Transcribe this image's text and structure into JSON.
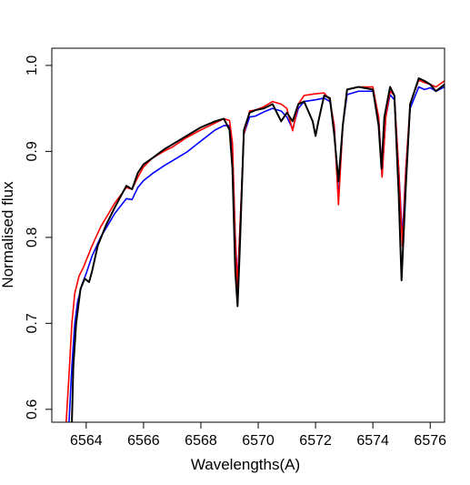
{
  "chart_data": {
    "type": "line",
    "title": "",
    "xlabel": "Wavelengths(A)",
    "ylabel": "Normalised flux",
    "xlim": [
      6562.8,
      6576.5
    ],
    "ylim": [
      0.585,
      1.02
    ],
    "xticks": [
      6564,
      6566,
      6568,
      6570,
      6572,
      6574,
      6576
    ],
    "yticks": [
      0.6,
      0.7,
      0.8,
      0.9,
      1.0
    ],
    "xtick_labels": [
      "6564",
      "6566",
      "6568",
      "6570",
      "6572",
      "6574",
      "6576"
    ],
    "ytick_labels": [
      "0.6",
      "0.7",
      "0.8",
      "0.9",
      "1.0"
    ],
    "grid": false,
    "legend": "none",
    "series": [
      {
        "color": "#0000ff",
        "points": [
          [
            6563.4,
            0.585
          ],
          [
            6563.5,
            0.65
          ],
          [
            6563.6,
            0.7
          ],
          [
            6563.7,
            0.725
          ],
          [
            6563.85,
            0.745
          ],
          [
            6564.0,
            0.758
          ],
          [
            6564.2,
            0.778
          ],
          [
            6564.5,
            0.8
          ],
          [
            6565.0,
            0.828
          ],
          [
            6565.4,
            0.845
          ],
          [
            6565.6,
            0.844
          ],
          [
            6565.8,
            0.858
          ],
          [
            6566.0,
            0.866
          ],
          [
            6566.3,
            0.874
          ],
          [
            6566.7,
            0.883
          ],
          [
            6567.0,
            0.889
          ],
          [
            6567.5,
            0.899
          ],
          [
            6568.0,
            0.912
          ],
          [
            6568.5,
            0.925
          ],
          [
            6568.8,
            0.93
          ],
          [
            6569.0,
            0.93
          ],
          [
            6569.1,
            0.905
          ],
          [
            6569.2,
            0.8
          ],
          [
            6569.28,
            0.748
          ],
          [
            6569.35,
            0.8
          ],
          [
            6569.5,
            0.92
          ],
          [
            6569.7,
            0.94
          ],
          [
            6569.9,
            0.941
          ],
          [
            6570.2,
            0.946
          ],
          [
            6570.5,
            0.95
          ],
          [
            6570.8,
            0.947
          ],
          [
            6571.0,
            0.94
          ],
          [
            6571.2,
            0.926
          ],
          [
            6571.4,
            0.95
          ],
          [
            6571.6,
            0.958
          ],
          [
            6572.0,
            0.96
          ],
          [
            6572.3,
            0.962
          ],
          [
            6572.5,
            0.958
          ],
          [
            6572.65,
            0.93
          ],
          [
            6572.8,
            0.845
          ],
          [
            6572.95,
            0.93
          ],
          [
            6573.1,
            0.966
          ],
          [
            6573.5,
            0.97
          ],
          [
            6574.0,
            0.97
          ],
          [
            6574.2,
            0.94
          ],
          [
            6574.32,
            0.872
          ],
          [
            6574.45,
            0.94
          ],
          [
            6574.6,
            0.966
          ],
          [
            6574.75,
            0.96
          ],
          [
            6574.9,
            0.88
          ],
          [
            6575.03,
            0.8
          ],
          [
            6575.15,
            0.88
          ],
          [
            6575.3,
            0.95
          ],
          [
            6575.6,
            0.975
          ],
          [
            6575.8,
            0.972
          ],
          [
            6576.0,
            0.974
          ],
          [
            6576.2,
            0.97
          ],
          [
            6576.5,
            0.975
          ]
        ]
      },
      {
        "color": "#ff0000",
        "points": [
          [
            6563.3,
            0.585
          ],
          [
            6563.4,
            0.64
          ],
          [
            6563.5,
            0.7
          ],
          [
            6563.6,
            0.735
          ],
          [
            6563.75,
            0.755
          ],
          [
            6563.9,
            0.765
          ],
          [
            6564.2,
            0.79
          ],
          [
            6564.5,
            0.812
          ],
          [
            6565.0,
            0.84
          ],
          [
            6565.4,
            0.858
          ],
          [
            6565.6,
            0.856
          ],
          [
            6565.8,
            0.87
          ],
          [
            6566.0,
            0.882
          ],
          [
            6566.3,
            0.892
          ],
          [
            6566.7,
            0.9
          ],
          [
            6567.0,
            0.905
          ],
          [
            6567.5,
            0.916
          ],
          [
            6568.0,
            0.925
          ],
          [
            6568.5,
            0.933
          ],
          [
            6568.8,
            0.938
          ],
          [
            6569.0,
            0.936
          ],
          [
            6569.1,
            0.91
          ],
          [
            6569.2,
            0.8
          ],
          [
            6569.28,
            0.742
          ],
          [
            6569.35,
            0.8
          ],
          [
            6569.5,
            0.92
          ],
          [
            6569.7,
            0.947
          ],
          [
            6569.9,
            0.948
          ],
          [
            6570.2,
            0.952
          ],
          [
            6570.5,
            0.958
          ],
          [
            6570.8,
            0.955
          ],
          [
            6571.0,
            0.95
          ],
          [
            6571.2,
            0.924
          ],
          [
            6571.4,
            0.955
          ],
          [
            6571.6,
            0.965
          ],
          [
            6572.0,
            0.967
          ],
          [
            6572.3,
            0.968
          ],
          [
            6572.5,
            0.96
          ],
          [
            6572.65,
            0.93
          ],
          [
            6572.8,
            0.838
          ],
          [
            6572.95,
            0.93
          ],
          [
            6573.1,
            0.972
          ],
          [
            6573.5,
            0.975
          ],
          [
            6574.0,
            0.975
          ],
          [
            6574.2,
            0.94
          ],
          [
            6574.32,
            0.87
          ],
          [
            6574.45,
            0.94
          ],
          [
            6574.6,
            0.97
          ],
          [
            6574.75,
            0.965
          ],
          [
            6574.9,
            0.88
          ],
          [
            6575.03,
            0.79
          ],
          [
            6575.15,
            0.88
          ],
          [
            6575.3,
            0.955
          ],
          [
            6575.6,
            0.983
          ],
          [
            6575.8,
            0.98
          ],
          [
            6576.0,
            0.978
          ],
          [
            6576.2,
            0.975
          ],
          [
            6576.5,
            0.982
          ]
        ]
      },
      {
        "color": "#000000",
        "points": [
          [
            6563.5,
            0.585
          ],
          [
            6563.55,
            0.65
          ],
          [
            6563.65,
            0.7
          ],
          [
            6563.8,
            0.74
          ],
          [
            6563.95,
            0.752
          ],
          [
            6564.1,
            0.748
          ],
          [
            6564.2,
            0.76
          ],
          [
            6564.4,
            0.79
          ],
          [
            6564.7,
            0.815
          ],
          [
            6565.0,
            0.835
          ],
          [
            6565.4,
            0.86
          ],
          [
            6565.6,
            0.856
          ],
          [
            6565.8,
            0.875
          ],
          [
            6566.0,
            0.885
          ],
          [
            6566.3,
            0.892
          ],
          [
            6566.7,
            0.902
          ],
          [
            6567.0,
            0.908
          ],
          [
            6567.5,
            0.918
          ],
          [
            6568.0,
            0.928
          ],
          [
            6568.5,
            0.935
          ],
          [
            6568.8,
            0.938
          ],
          [
            6569.0,
            0.925
          ],
          [
            6569.1,
            0.88
          ],
          [
            6569.2,
            0.76
          ],
          [
            6569.28,
            0.72
          ],
          [
            6569.35,
            0.78
          ],
          [
            6569.5,
            0.925
          ],
          [
            6569.7,
            0.945
          ],
          [
            6569.9,
            0.948
          ],
          [
            6570.2,
            0.95
          ],
          [
            6570.5,
            0.955
          ],
          [
            6570.8,
            0.935
          ],
          [
            6571.0,
            0.945
          ],
          [
            6571.2,
            0.935
          ],
          [
            6571.4,
            0.955
          ],
          [
            6571.6,
            0.958
          ],
          [
            6571.9,
            0.935
          ],
          [
            6572.0,
            0.918
          ],
          [
            6572.1,
            0.935
          ],
          [
            6572.3,
            0.965
          ],
          [
            6572.5,
            0.962
          ],
          [
            6572.65,
            0.92
          ],
          [
            6572.8,
            0.865
          ],
          [
            6572.95,
            0.93
          ],
          [
            6573.1,
            0.972
          ],
          [
            6573.5,
            0.975
          ],
          [
            6574.0,
            0.972
          ],
          [
            6574.2,
            0.93
          ],
          [
            6574.3,
            0.88
          ],
          [
            6574.4,
            0.94
          ],
          [
            6574.6,
            0.975
          ],
          [
            6574.75,
            0.965
          ],
          [
            6574.9,
            0.85
          ],
          [
            6575.0,
            0.75
          ],
          [
            6575.15,
            0.86
          ],
          [
            6575.3,
            0.955
          ],
          [
            6575.6,
            0.985
          ],
          [
            6575.8,
            0.982
          ],
          [
            6576.0,
            0.978
          ],
          [
            6576.2,
            0.97
          ],
          [
            6576.5,
            0.978
          ]
        ]
      }
    ]
  }
}
